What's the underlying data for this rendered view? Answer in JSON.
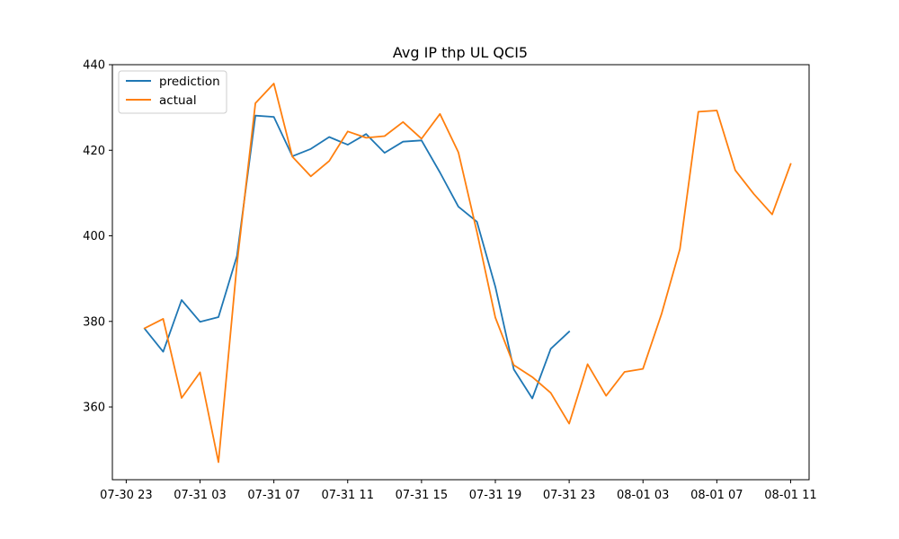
{
  "chart_data": {
    "type": "line",
    "title": "Avg IP thp UL QCI5",
    "xlabel": "",
    "ylabel": "",
    "x_tick_labels": [
      "07-30 23",
      "07-31 03",
      "07-31 07",
      "07-31 11",
      "07-31 15",
      "07-31 19",
      "07-31 23",
      "08-01 03",
      "08-01 07",
      "08-01 11"
    ],
    "x_ticks": [
      "07-30 23:00",
      "07-31 03:00",
      "07-31 07:00",
      "07-31 11:00",
      "07-31 15:00",
      "07-31 19:00",
      "07-31 23:00",
      "08-01 03:00",
      "08-01 07:00",
      "08-01 11:00"
    ],
    "xlim": [
      "07-30 22:15",
      "08-01 12:00"
    ],
    "y_ticks": [
      360,
      380,
      400,
      420,
      440
    ],
    "ylim": [
      343,
      440
    ],
    "grid": false,
    "legend": "upper left",
    "series": [
      {
        "name": "prediction",
        "color": "#1f77b4",
        "x": [
          "07-31 00:00",
          "07-31 01:00",
          "07-31 02:00",
          "07-31 03:00",
          "07-31 04:00",
          "07-31 05:00",
          "07-31 06:00",
          "07-31 07:00",
          "07-31 08:00",
          "07-31 09:00",
          "07-31 10:00",
          "07-31 11:00",
          "07-31 12:00",
          "07-31 13:00",
          "07-31 14:00",
          "07-31 15:00",
          "07-31 16:00",
          "07-31 17:00",
          "07-31 18:00",
          "07-31 19:00",
          "07-31 20:00",
          "07-31 21:00",
          "07-31 22:00",
          "07-31 23:00"
        ],
        "values": [
          378.3,
          372.9,
          385.0,
          379.9,
          381.0,
          395.3,
          428.1,
          427.8,
          418.6,
          420.3,
          423.1,
          421.3,
          423.8,
          419.4,
          422.0,
          422.3,
          414.8,
          406.8,
          403.3,
          388.1,
          368.8,
          362.0,
          373.6,
          377.6
        ]
      },
      {
        "name": "actual",
        "color": "#ff7f0e",
        "x": [
          "07-31 00:00",
          "07-31 01:00",
          "07-31 02:00",
          "07-31 03:00",
          "07-31 04:00",
          "07-31 05:00",
          "07-31 06:00",
          "07-31 07:00",
          "07-31 08:00",
          "07-31 09:00",
          "07-31 10:00",
          "07-31 11:00",
          "07-31 12:00",
          "07-31 13:00",
          "07-31 14:00",
          "07-31 15:00",
          "07-31 16:00",
          "07-31 17:00",
          "07-31 18:00",
          "07-31 19:00",
          "07-31 20:00",
          "07-31 21:00",
          "07-31 22:00",
          "07-31 23:00",
          "08-01 00:00",
          "08-01 01:00",
          "08-01 02:00",
          "08-01 03:00",
          "08-01 04:00",
          "08-01 05:00",
          "08-01 06:00",
          "08-01 07:00",
          "08-01 08:00",
          "08-01 09:00",
          "08-01 10:00",
          "08-01 11:00"
        ],
        "values": [
          378.4,
          380.6,
          362.1,
          368.1,
          347.1,
          393.4,
          431.0,
          435.6,
          418.5,
          413.9,
          417.5,
          424.4,
          422.9,
          423.3,
          426.6,
          422.7,
          428.5,
          419.5,
          400.9,
          380.9,
          369.8,
          367.0,
          363.3,
          356.1,
          370.0,
          362.6,
          368.2,
          368.9,
          381.7,
          396.9,
          429.0,
          429.3,
          415.3,
          409.8,
          405.0,
          416.8
        ]
      }
    ]
  }
}
